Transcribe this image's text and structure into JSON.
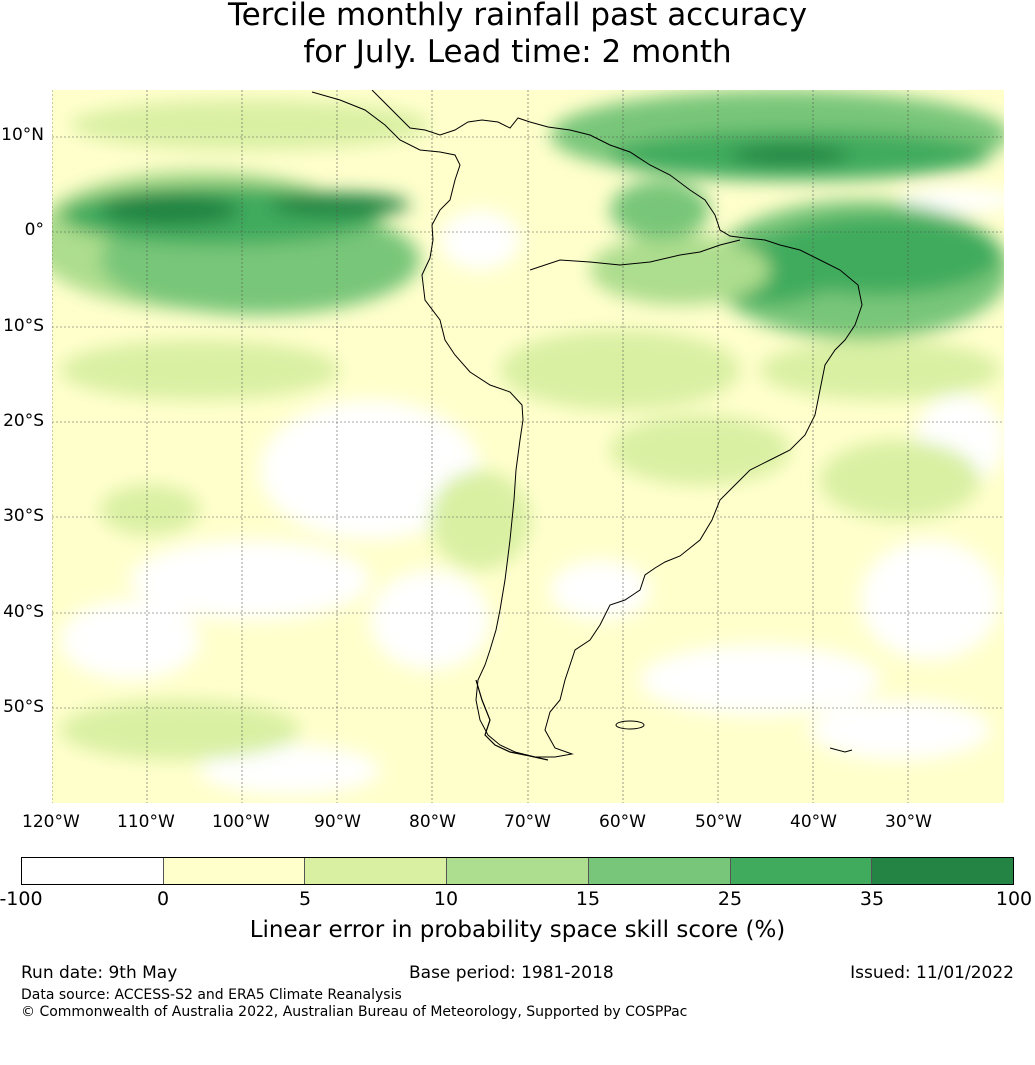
{
  "title_line1": "Tercile monthly rainfall past accuracy",
  "title_line2": "for July. Lead time: 2 month",
  "lat_labels": [
    "10°N",
    "0°",
    "10°S",
    "20°S",
    "30°S",
    "40°S",
    "50°S"
  ],
  "lon_labels": [
    "120°W",
    "110°W",
    "100°W",
    "90°W",
    "80°W",
    "70°W",
    "60°W",
    "50°W",
    "40°W",
    "30°W"
  ],
  "colorbar": {
    "ticks": [
      "-100",
      "0",
      "5",
      "10",
      "15",
      "25",
      "35",
      "100"
    ],
    "colors": [
      "#ffffff",
      "#ffffcc",
      "#d9f0a3",
      "#addd8e",
      "#78c679",
      "#41ab5d",
      "#238443"
    ],
    "label": "Linear error in probability space skill score (%)"
  },
  "footer": {
    "run_date": "Run date: 9th May",
    "base_period": "Base period: 1981-2018",
    "issued": "Issued: 11/01/2022",
    "data_source": "Data source: ACCESS-S2 and ERA5 Climate Reanalysis",
    "copyright": "© Commonwealth of Australia 2022, Australian Bureau of Meteorology, Supported by COSPPac"
  }
}
